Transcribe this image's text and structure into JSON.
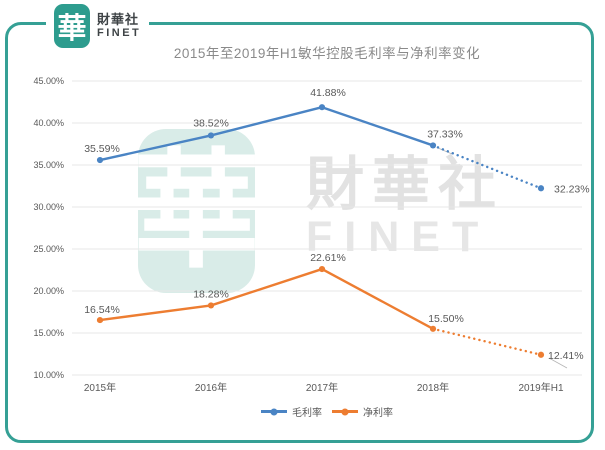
{
  "logo": {
    "seal_character": "華",
    "brand_zh": "財華社",
    "brand_en": "FINET"
  },
  "watermark": {
    "seal_character": "華",
    "brand_zh": "財華社",
    "brand_en": "FINET"
  },
  "chart_data": {
    "type": "line",
    "title": "2015年至2019年H1敏华控股毛利率与净利率变化",
    "categories": [
      "2015年",
      "2016年",
      "2017年",
      "2018年",
      "2019年H1"
    ],
    "series": [
      {
        "name": "毛利率",
        "color": "#4a84c4",
        "values": [
          35.59,
          38.52,
          41.88,
          37.33,
          32.23
        ],
        "point_labels": [
          "35.59%",
          "38.52%",
          "41.88%",
          "37.33%",
          "32.23%"
        ],
        "dashed_from_index": 3
      },
      {
        "name": "净利率",
        "color": "#ed7d31",
        "values": [
          16.54,
          18.28,
          22.61,
          15.5,
          12.41
        ],
        "point_labels": [
          "16.54%",
          "18.28%",
          "22.61%",
          "15.50%",
          "12.41%"
        ],
        "dashed_from_index": 3
      }
    ],
    "ylim": [
      10,
      45
    ],
    "ytick_step": 5,
    "ytick_labels": [
      "10.00%",
      "15.00%",
      "20.00%",
      "25.00%",
      "30.00%",
      "35.00%",
      "40.00%",
      "45.00%"
    ],
    "grid": true,
    "legend_position": "bottom"
  },
  "colors": {
    "accent_teal": "#35a095",
    "seal_teal": "#2d9c8e",
    "series_blue": "#4a84c4",
    "series_orange": "#ed7d31",
    "grid_line": "#e7e7e7",
    "axis_text": "#595959",
    "point_label_text": "#595959",
    "title_text": "#8a8a8a",
    "watermark_gray": "#e2e2e2",
    "watermark_teal": "#d9ece8"
  }
}
